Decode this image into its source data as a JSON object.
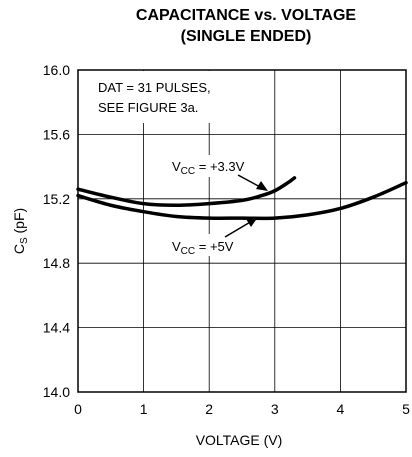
{
  "chart_data": {
    "type": "line",
    "title_line1": "CAPACITANCE vs. VOLTAGE",
    "title_line2": "(SINGLE ENDED)",
    "xlabel": "VOLTAGE (V)",
    "ylabel_main": "C",
    "ylabel_sub": "S",
    "ylabel_unit": " (pF)",
    "xlim": [
      0,
      5
    ],
    "ylim": [
      14.0,
      16.0
    ],
    "x_ticks": [
      "0",
      "1",
      "2",
      "3",
      "4",
      "5"
    ],
    "y_ticks": [
      "14.0",
      "14.4",
      "14.8",
      "15.2",
      "15.6",
      "16.0"
    ],
    "grid": true,
    "annotation_line1": "DAT = 31 PULSES,",
    "annotation_line2": "SEE FIGURE 3a.",
    "series": [
      {
        "name_main": "V",
        "name_sub": "CC",
        "name_rest": " = +3.3V",
        "x": [
          0,
          0.5,
          1.0,
          1.5,
          2.0,
          2.5,
          2.8,
          3.0,
          3.2,
          3.3
        ],
        "y": [
          15.26,
          15.21,
          15.17,
          15.16,
          15.17,
          15.19,
          15.22,
          15.25,
          15.3,
          15.33
        ]
      },
      {
        "name_main": "V",
        "name_sub": "CC",
        "name_rest": " = +5V",
        "x": [
          0,
          0.5,
          1.0,
          1.5,
          2.0,
          2.5,
          3.0,
          3.5,
          4.0,
          4.5,
          5.0
        ],
        "y": [
          15.22,
          15.16,
          15.12,
          15.09,
          15.08,
          15.08,
          15.08,
          15.1,
          15.14,
          15.21,
          15.3
        ]
      }
    ]
  }
}
